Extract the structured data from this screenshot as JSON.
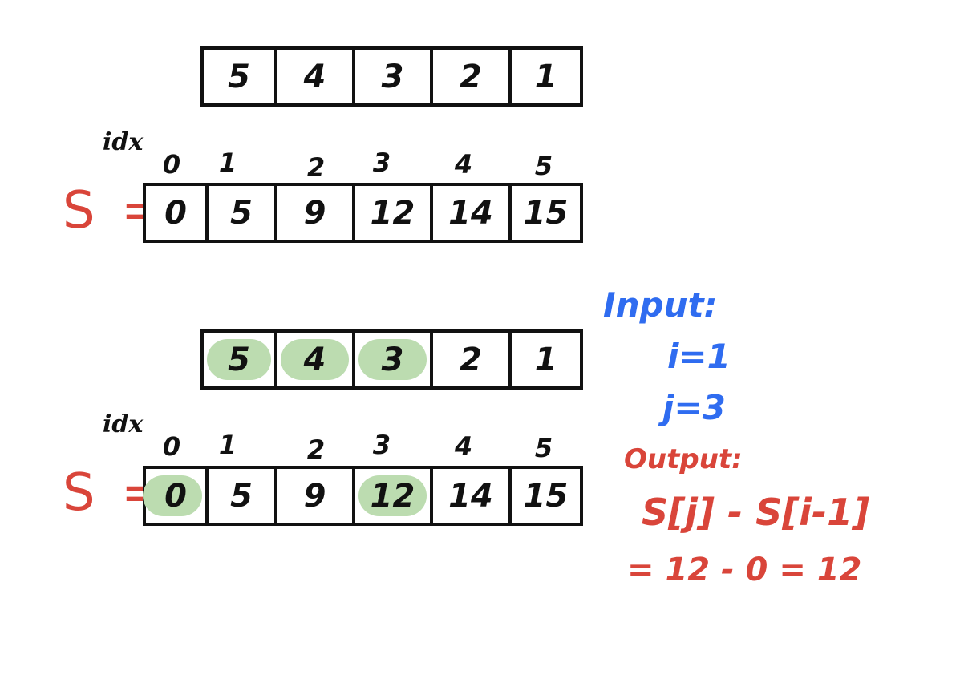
{
  "top": {
    "array": [
      "5",
      "4",
      "3",
      "2",
      "1"
    ],
    "idx_label": "idx",
    "indices": [
      "0",
      "1",
      "2",
      "3",
      "4",
      "5"
    ],
    "s_label": "S =",
    "prefix": [
      "0",
      "5",
      "9",
      "12",
      "14",
      "15"
    ]
  },
  "bottom": {
    "array": [
      "5",
      "4",
      "3",
      "2",
      "1"
    ],
    "array_highlight": [
      true,
      true,
      true,
      false,
      false
    ],
    "idx_label": "idx",
    "indices": [
      "0",
      "1",
      "2",
      "3",
      "4",
      "5"
    ],
    "s_label": "S =",
    "prefix": [
      "0",
      "5",
      "9",
      "12",
      "14",
      "15"
    ],
    "prefix_highlight": [
      true,
      false,
      false,
      true,
      false,
      false
    ]
  },
  "notes": {
    "input_label": "Input:",
    "i_line": "i=1",
    "j_line": "j=3",
    "output_label": "Output:",
    "formula": "S[j] - S[i-1]",
    "result": "= 12 - 0 = 12"
  },
  "colors": {
    "highlight": "#bcdcb0",
    "red": "#d9453a",
    "blue": "#2f6cf0"
  }
}
